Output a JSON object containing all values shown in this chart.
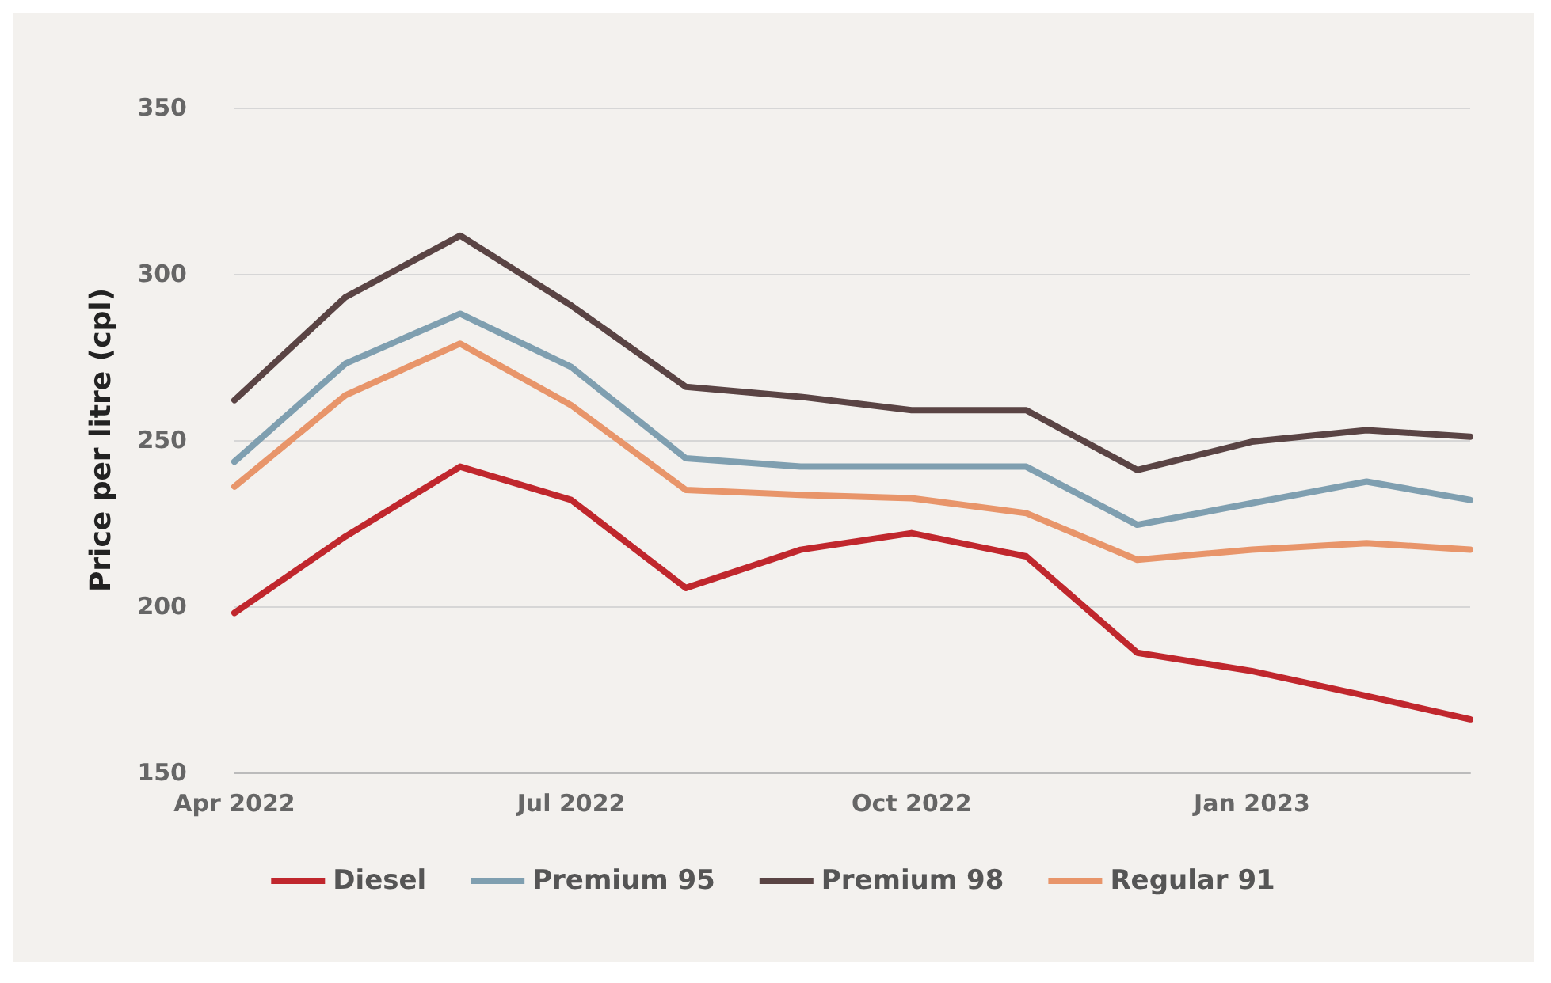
{
  "chart_data": {
    "type": "line",
    "ylabel": "Price per litre (cpl)",
    "x": [
      "2022-04",
      "2022-05",
      "2022-06",
      "2022-07",
      "2022-08",
      "2022-09",
      "2022-10",
      "2022-11",
      "2022-12",
      "2023-01",
      "2023-02",
      "2023-03"
    ],
    "series": [
      {
        "name": "Diesel",
        "color": "#c0272d",
        "values": [
          198,
          221,
          242,
          232,
          205.5,
          217,
          222,
          215,
          186,
          180.5,
          173,
          166
        ]
      },
      {
        "name": "Premium 95",
        "color": "#7f9fb0",
        "values": [
          243.5,
          273,
          288,
          272,
          244.5,
          242,
          242,
          242,
          224.5,
          231,
          237.5,
          232
        ]
      },
      {
        "name": "Premium 98",
        "color": "#5a4444",
        "values": [
          262,
          293,
          311.5,
          290.5,
          266,
          263,
          259,
          259,
          241,
          249.5,
          253,
          251
        ]
      },
      {
        "name": "Regular 91",
        "color": "#e8956a",
        "values": [
          236,
          263.5,
          279,
          260.5,
          235,
          233.5,
          232.5,
          228,
          214,
          217,
          219,
          217
        ]
      }
    ],
    "xlim": [
      "2022-04",
      "2023-03"
    ],
    "xticks": [
      {
        "value": "2022-04",
        "label": "Apr 2022"
      },
      {
        "value": "2022-07",
        "label": "Jul 2022"
      },
      {
        "value": "2022-10",
        "label": "Oct 2022"
      },
      {
        "value": "2023-01",
        "label": "Jan 2023"
      }
    ],
    "ylim": [
      150,
      350
    ],
    "yticks": [
      150,
      200,
      250,
      300,
      350
    ],
    "grid": "y",
    "legend": "bottom",
    "marker": "none",
    "line_style": "solid"
  }
}
